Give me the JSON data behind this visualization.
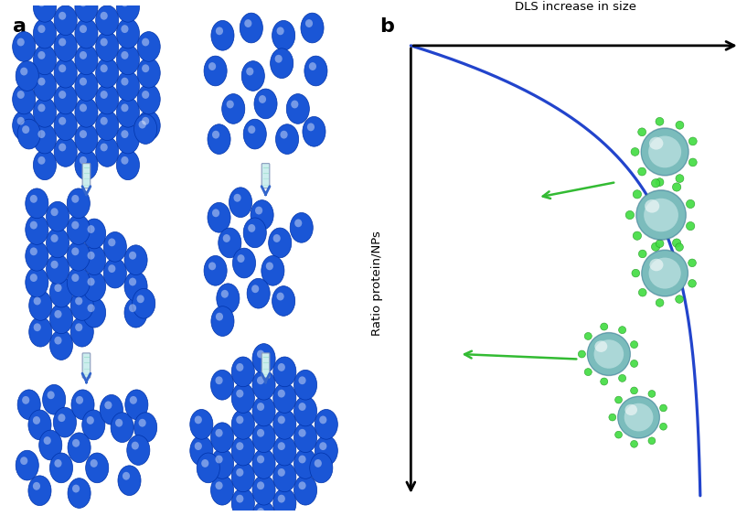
{
  "fig_width": 8.17,
  "fig_height": 5.64,
  "bg_color": "#ffffff",
  "blue_np": "#1a56d6",
  "blue_np_light": "#4488ff",
  "blue_np_dark": "#0033aa",
  "panel_a_label": "a",
  "panel_b_label": "b",
  "label_fontsize": 16,
  "axis_label_x": "DLS increase in size",
  "axis_label_y": "Ratio protein/NPs",
  "curve_color": "#2244cc",
  "arrow_green": "#33bb33",
  "np_teal_center": "#aadddd",
  "np_teal_edge": "#5599aa",
  "np_teal_dark": "#336677",
  "protein_green": "#44dd44",
  "protein_green_edge": "#229922",
  "tube_fill": "#cceeee",
  "tube_edge": "#8899bb",
  "arrow_blue": "#3366cc"
}
